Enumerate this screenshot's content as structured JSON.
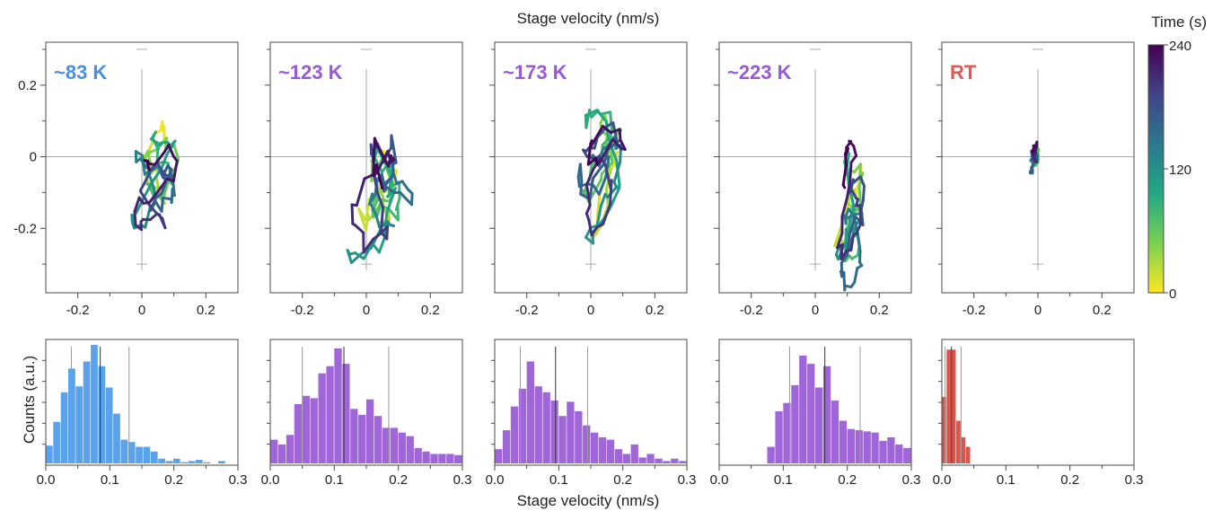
{
  "figure": {
    "top_xlabel": "Stage velocity (nm/s)",
    "bottom_xlabel": "Stage velocity (nm/s)",
    "bottom_ylabel": "Counts (a.u.)",
    "colorbar": {
      "label": "Time (s)",
      "ticks": [
        "240",
        "120",
        "0"
      ],
      "stops": [
        "#fde725",
        "#7ad151",
        "#22a884",
        "#2a788e",
        "#414487",
        "#440154"
      ]
    }
  },
  "chart_data": [
    {
      "type": "line",
      "label": "~83 K",
      "label_color": "#4a90e2",
      "xlim": [
        -0.3,
        0.3
      ],
      "ylim": [
        -0.38,
        0.32
      ],
      "xticks": [
        -0.2,
        0,
        0.2
      ],
      "xticklabels": [
        "-0.2",
        "0",
        "0.2"
      ],
      "yticks": [
        0.2,
        0,
        -0.2
      ],
      "yticklabels": [
        "0.2",
        "0",
        "-0.2"
      ],
      "trajectory": {
        "cx": 0.05,
        "cy": -0.05,
        "sx": 0.05,
        "sy": 0.12,
        "tilt": 0.2,
        "seed": 3
      }
    },
    {
      "type": "line",
      "label": "~123 K",
      "label_color": "#9b59d6",
      "xlim": [
        -0.3,
        0.3
      ],
      "ylim": [
        -0.38,
        0.32
      ],
      "xticks": [
        -0.2,
        0,
        0.2
      ],
      "xticklabels": [
        "-0.2",
        "0",
        "0.2"
      ],
      "yticks": [
        0.2,
        0,
        -0.2
      ],
      "yticklabels": [
        "",
        "",
        ""
      ],
      "trajectory": {
        "cx": 0.05,
        "cy": -0.06,
        "sx": 0.06,
        "sy": 0.17,
        "tilt": 0.0,
        "seed": 7
      }
    },
    {
      "type": "line",
      "label": "~173 K",
      "label_color": "#9b59d6",
      "xlim": [
        -0.3,
        0.3
      ],
      "ylim": [
        -0.38,
        0.32
      ],
      "xticks": [
        -0.2,
        0,
        0.2
      ],
      "xticklabels": [
        "-0.2",
        "0",
        "0.2"
      ],
      "yticks": [
        0.2,
        0,
        -0.2
      ],
      "yticklabels": [
        "",
        "",
        ""
      ],
      "trajectory": {
        "cx": 0.04,
        "cy": -0.05,
        "sx": 0.06,
        "sy": 0.14,
        "tilt": 0.3,
        "seed": 11
      }
    },
    {
      "type": "line",
      "label": "~223 K",
      "label_color": "#9b59d6",
      "xlim": [
        -0.3,
        0.3
      ],
      "ylim": [
        -0.38,
        0.32
      ],
      "xticks": [
        -0.2,
        0,
        0.2
      ],
      "xticklabels": [
        "-0.2",
        "0",
        "0.2"
      ],
      "yticks": [
        0.2,
        0,
        -0.2
      ],
      "yticklabels": [
        "",
        "",
        ""
      ],
      "trajectory": {
        "cx": 0.11,
        "cy": -0.14,
        "sx": 0.04,
        "sy": 0.12,
        "tilt": 0.35,
        "seed": 19
      }
    },
    {
      "type": "line",
      "label": "RT",
      "label_color": "#e05a4f",
      "xlim": [
        -0.3,
        0.3
      ],
      "ylim": [
        -0.38,
        0.32
      ],
      "xticks": [
        -0.2,
        0,
        0.2
      ],
      "xticklabels": [
        "-0.2",
        "0",
        "0.2"
      ],
      "yticks": [
        0.2,
        0,
        -0.2
      ],
      "yticklabels": [
        "",
        "",
        ""
      ],
      "trajectory": {
        "cx": -0.01,
        "cy": 0.0,
        "sx": 0.012,
        "sy": 0.025,
        "tilt": 0.2,
        "seed": 23
      }
    },
    {
      "type": "bar",
      "color": "#5aa3ec",
      "xlim": [
        0,
        0.3
      ],
      "xticks": [
        0,
        0.1,
        0.2,
        0.3
      ],
      "xticklabels": [
        "0.0",
        "0.1",
        "0.2",
        "0.3"
      ],
      "bin_width": 0.0117,
      "counts": [
        0.15,
        0.35,
        0.6,
        0.8,
        0.65,
        0.86,
        1.0,
        0.82,
        0.64,
        0.42,
        0.2,
        0.18,
        0.14,
        0.14,
        0.1,
        0.04,
        0.02,
        0.04,
        0.01,
        0.02,
        0.03,
        0.01,
        0.0,
        0.02
      ],
      "mean": 0.085,
      "sd_lines": [
        0.04,
        0.13
      ]
    },
    {
      "type": "bar",
      "color": "#a066d9",
      "xlim": [
        0,
        0.3
      ],
      "xticks": [
        0,
        0.1,
        0.2,
        0.3
      ],
      "xticklabels": [
        "0.0",
        "0.1",
        "0.2",
        "0.3"
      ],
      "bin_width": 0.0125,
      "counts": [
        0.2,
        0.16,
        0.24,
        0.5,
        0.57,
        0.55,
        0.76,
        0.82,
        0.97,
        0.84,
        0.46,
        0.41,
        0.54,
        0.4,
        0.3,
        0.3,
        0.26,
        0.23,
        0.13,
        0.1,
        0.08,
        0.08,
        0.08,
        0.07
      ],
      "mean": 0.115,
      "sd_lines": [
        0.05,
        0.185
      ]
    },
    {
      "type": "bar",
      "color": "#a066d9",
      "xlim": [
        0,
        0.3
      ],
      "xticks": [
        0,
        0.1,
        0.2,
        0.3
      ],
      "xticklabels": [
        "0.0",
        "0.1",
        "0.2",
        "0.3"
      ],
      "bin_width": 0.0125,
      "counts": [
        0.12,
        0.28,
        0.48,
        0.63,
        0.86,
        0.65,
        0.6,
        0.53,
        0.4,
        0.52,
        0.44,
        0.32,
        0.26,
        0.22,
        0.2,
        0.12,
        0.08,
        0.16,
        0.05,
        0.08,
        0.04,
        0.02,
        0.04,
        0.02
      ],
      "mean": 0.095,
      "sd_lines": [
        0.04,
        0.145
      ]
    },
    {
      "type": "bar",
      "color": "#a066d9",
      "xlim": [
        0,
        0.3
      ],
      "xticks": [
        0,
        0.1,
        0.2,
        0.3
      ],
      "xticklabels": [
        "0.0",
        "0.1",
        "0.2",
        "0.3"
      ],
      "bin_width": 0.0125,
      "counts": [
        0.0,
        0.0,
        0.0,
        0.0,
        0.0,
        0.0,
        0.14,
        0.44,
        0.51,
        0.66,
        0.91,
        0.84,
        0.64,
        0.82,
        0.53,
        0.36,
        0.29,
        0.28,
        0.27,
        0.26,
        0.19,
        0.22,
        0.16,
        0.13
      ],
      "mean": 0.165,
      "sd_lines": [
        0.11,
        0.22
      ]
    },
    {
      "type": "bar",
      "color": "#d9544a",
      "xlim": [
        0,
        0.3
      ],
      "xticks": [
        0,
        0.1,
        0.2,
        0.3
      ],
      "xticklabels": [
        "0.0",
        "0.1",
        "0.2",
        "0.3"
      ],
      "bin_width": 0.0075,
      "counts": [
        0.56,
        0.96,
        0.96,
        0.36,
        0.22,
        0.14
      ],
      "mean": 0.015,
      "sd_lines": [
        0.005,
        0.03
      ]
    }
  ]
}
